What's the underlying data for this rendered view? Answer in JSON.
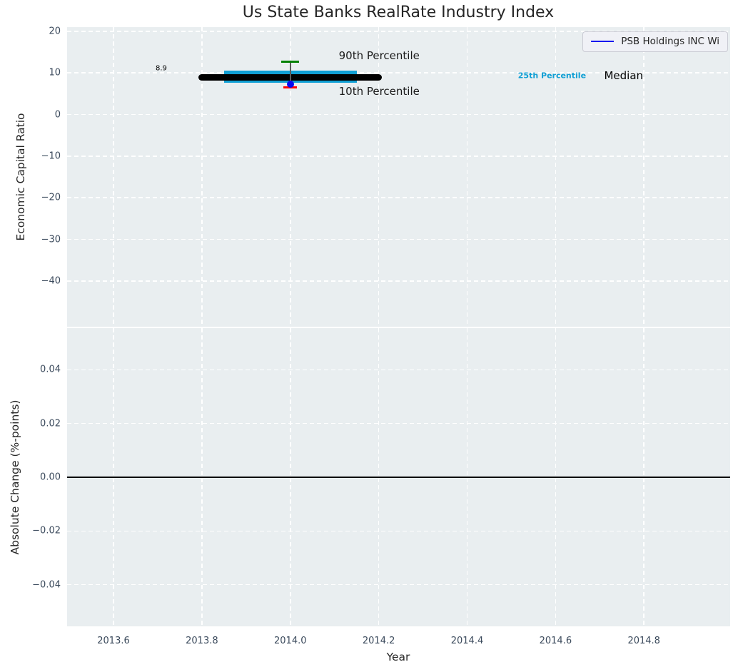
{
  "title": "Us State Banks RealRate Industry Index",
  "legend": {
    "label": "PSB Holdings INC Wi",
    "line_color": "#0404f0",
    "position": "upper right"
  },
  "colors": {
    "plot_background": "#e9eef0",
    "grid": "#ffffff",
    "tick_label": "#3b4a5c",
    "text": "#262626",
    "median_line": "#000000",
    "iqr_band": "#109fd4",
    "p90_cap": "#008000",
    "p10_cap": "#ff0000",
    "company_marker": "#0a0af0",
    "whisker": "#5a5a5a",
    "zero_line": "#000000"
  },
  "chart_data": [
    {
      "type": "box-timeline",
      "title": "Us State Banks RealRate Industry Index",
      "ylabel": "Economic Capital Ratio",
      "xlim": [
        2013.495,
        2014.995
      ],
      "ylim": [
        -51,
        21
      ],
      "xtick_values": [
        2013.6,
        2013.8,
        2014.0,
        2014.2,
        2014.4,
        2014.6,
        2014.8
      ],
      "xtick_labels": [
        "2013.6",
        "2013.8",
        "2014.0",
        "2014.2",
        "2014.4",
        "2014.6",
        "2014.8"
      ],
      "show_xtick_labels": false,
      "ytick_values": [
        20,
        10,
        0,
        -10,
        -20,
        -30,
        -40
      ],
      "ytick_labels": [
        "20",
        "10",
        "0",
        "−10",
        "−20",
        "−30",
        "−40"
      ],
      "grid": true,
      "legend_position": "upper right",
      "box": {
        "year": 2014.0,
        "median": 8.9,
        "median_span": [
          2013.8,
          2014.2
        ],
        "iqr": [
          7.7,
          10.6
        ],
        "iqr_span": [
          2013.85,
          2014.15
        ],
        "p90": 12.7,
        "p10": 6.6
      },
      "company_point": {
        "name": "PSB Holdings INC Wi",
        "x": 2014.0,
        "y": 7.3
      },
      "annotations": [
        {
          "text": "8.9",
          "x": 2013.708,
          "y": 11.1,
          "size": 10,
          "color": "#000000",
          "weight": "normal"
        },
        {
          "text": "90th Percentile",
          "x": 2014.201,
          "y": 14.1,
          "size": 15,
          "color": "#1a1a1a",
          "weight": "normal"
        },
        {
          "text": "10th Percentile",
          "x": 2014.201,
          "y": 5.6,
          "size": 15,
          "color": "#1a1a1a",
          "weight": "normal"
        },
        {
          "text": "25th Percentile",
          "x": 2014.592,
          "y": 9.4,
          "size": 11,
          "color": "#109fd4",
          "weight": "bold"
        },
        {
          "text": "Median",
          "x": 2014.754,
          "y": 9.4,
          "size": 15,
          "color": "#000000",
          "weight": "normal"
        }
      ]
    },
    {
      "type": "line",
      "ylabel": "Absolute Change (%-points)",
      "xlabel": "Year",
      "xlim": [
        2013.495,
        2014.995
      ],
      "ylim": [
        -0.0555,
        0.0555
      ],
      "xtick_values": [
        2013.6,
        2013.8,
        2014.0,
        2014.2,
        2014.4,
        2014.6,
        2014.8
      ],
      "xtick_labels": [
        "2013.6",
        "2013.8",
        "2014.0",
        "2014.2",
        "2014.4",
        "2014.6",
        "2014.8"
      ],
      "show_xtick_labels": true,
      "ytick_values": [
        0.04,
        0.02,
        0.0,
        -0.02,
        -0.04
      ],
      "ytick_labels": [
        "0.04",
        "0.02",
        "0.00",
        "−0.02",
        "−0.04"
      ],
      "grid": true,
      "zero_line": 0.0,
      "x": [],
      "values": []
    }
  ]
}
